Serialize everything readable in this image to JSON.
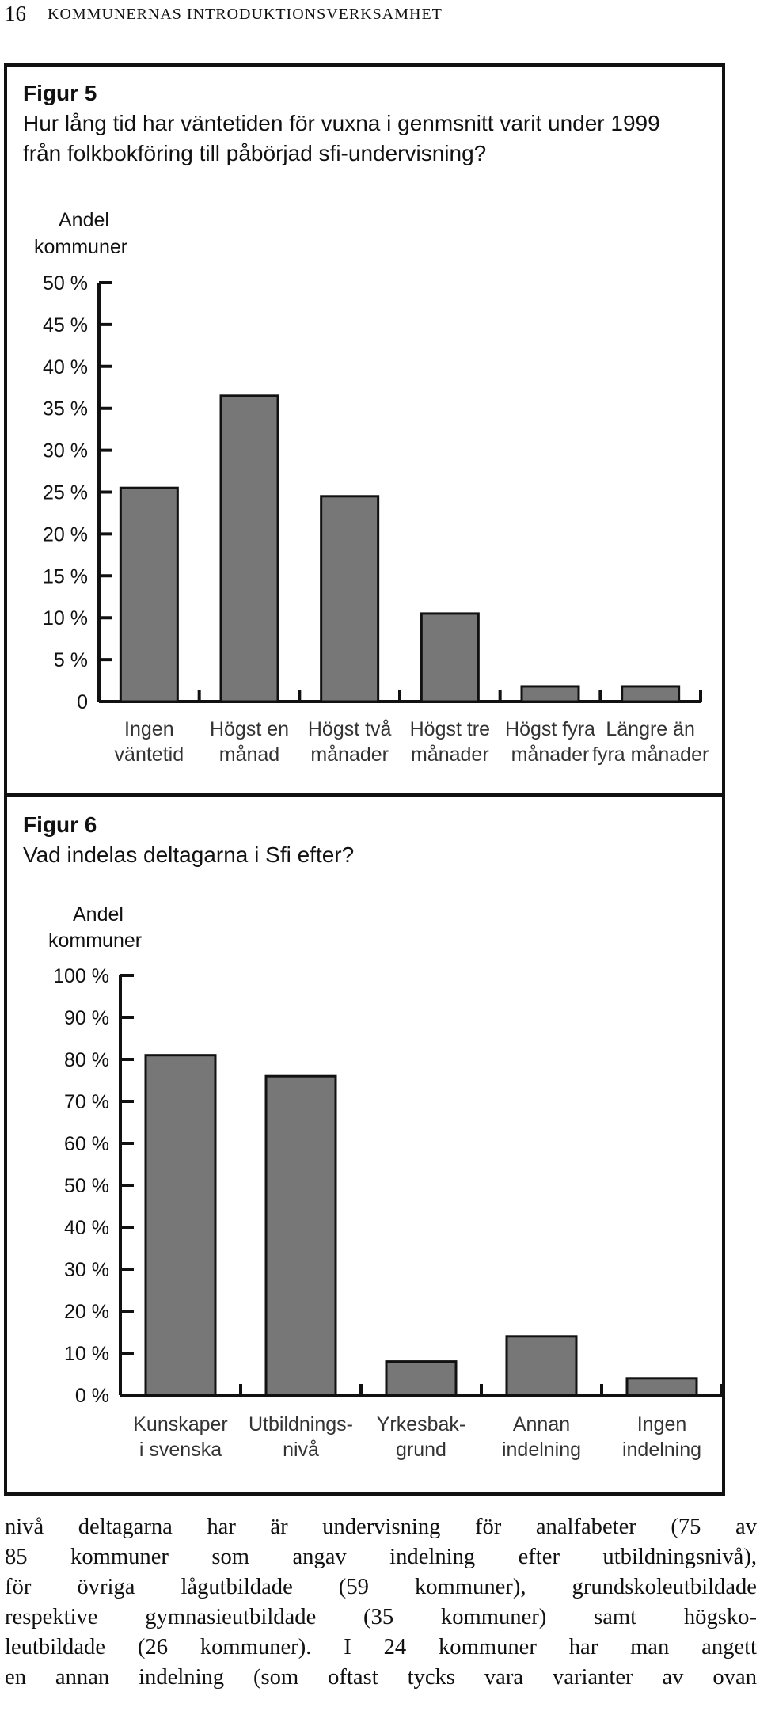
{
  "header": {
    "page_number": "16",
    "running_head": "KOMMUNERNAS INTRODUKTIONSVERKSAMHET"
  },
  "figure5": {
    "label": "Figur 5",
    "question_line1": "Hur lång tid har väntetiden för vuxna i genmsnitt varit under 1999",
    "question_line2": "från folkbokföring till påbörjad sfi-undervisning?",
    "ylabel_line1": "Andel",
    "ylabel_line2": "kommuner"
  },
  "figure6": {
    "label": "Figur 6",
    "question_line1": "Vad indelas deltagarna i Sfi efter?",
    "ylabel_line1": "Andel",
    "ylabel_line2": "kommuner"
  },
  "chart_data": [
    {
      "type": "bar",
      "title": "Figur 5",
      "ylabel": "Andel kommuner",
      "categories": [
        [
          "Ingen",
          "väntetid"
        ],
        [
          "Högst en",
          "månad"
        ],
        [
          "Högst två",
          "månader"
        ],
        [
          "Högst tre",
          "månader"
        ],
        [
          "Högst fyra",
          "månader"
        ],
        [
          "Längre än",
          "fyra månader"
        ]
      ],
      "values": [
        25.5,
        36.5,
        24.5,
        10.5,
        1.8,
        1.8
      ],
      "ylim": [
        0,
        50
      ],
      "yticks": [
        "0",
        "5 %",
        "10 %",
        "15 %",
        "20 %",
        "25 %",
        "30 %",
        "35 %",
        "40 %",
        "45 %",
        "50 %"
      ],
      "bar_color": "#777777",
      "grid": false
    },
    {
      "type": "bar",
      "title": "Figur 6",
      "ylabel": "Andel kommuner",
      "categories": [
        [
          "Kunskaper",
          "i svenska"
        ],
        [
          "Utbildnings-",
          "nivå"
        ],
        [
          "Yrkesbak-",
          "grund"
        ],
        [
          "Annan",
          "indelning"
        ],
        [
          "Ingen",
          "indelning"
        ]
      ],
      "values": [
        81,
        76,
        8,
        14,
        4
      ],
      "ylim": [
        0,
        100
      ],
      "yticks": [
        "0 %",
        "10 %",
        "20 %",
        "30 %",
        "40 %",
        "50 %",
        "60 %",
        "70 %",
        "80 %",
        "90 %",
        "100 %"
      ],
      "bar_color": "#777777",
      "grid": false
    }
  ],
  "body": {
    "lines": [
      "nivå deltagarna har är undervisning för analfabeter (75 av",
      "85 kommuner som angav indelning efter utbildningsnivå),",
      "för övriga lågutbildade (59 kommuner), grundskoleutbildade",
      "respektive gymnasieutbildade (35 kommuner) samt högsko-",
      "leutbildade (26 kommuner). I 24 kommuner har man angett",
      "en annan indelning (som oftast tycks vara varianter av ovan"
    ]
  }
}
